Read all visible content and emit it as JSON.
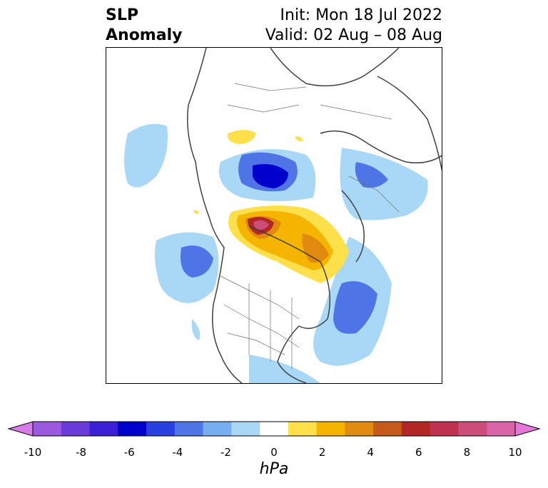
{
  "header": {
    "title_line1": "SLP",
    "title_line2": "Anomaly",
    "init": "Init: Mon 18 Jul 2022",
    "valid": "Valid: 02 Aug – 08 Aug"
  },
  "colorbar": {
    "unit": "hPa",
    "ticks": [
      "-10",
      "-8",
      "-6",
      "-4",
      "-2",
      "0",
      "2",
      "4",
      "6",
      "8",
      "10"
    ],
    "colors": [
      "#d77ce6",
      "#9b59e0",
      "#6a3bd8",
      "#3b1fd6",
      "#0000cc",
      "#2a3fe0",
      "#4f74e6",
      "#78aef0",
      "#a9d8f7",
      "#ffffff",
      "#ffe04a",
      "#f4b400",
      "#e08a10",
      "#c65a1a",
      "#b32626",
      "#c03050",
      "#cc4d7a",
      "#d964a8",
      "#e477d8"
    ]
  }
}
